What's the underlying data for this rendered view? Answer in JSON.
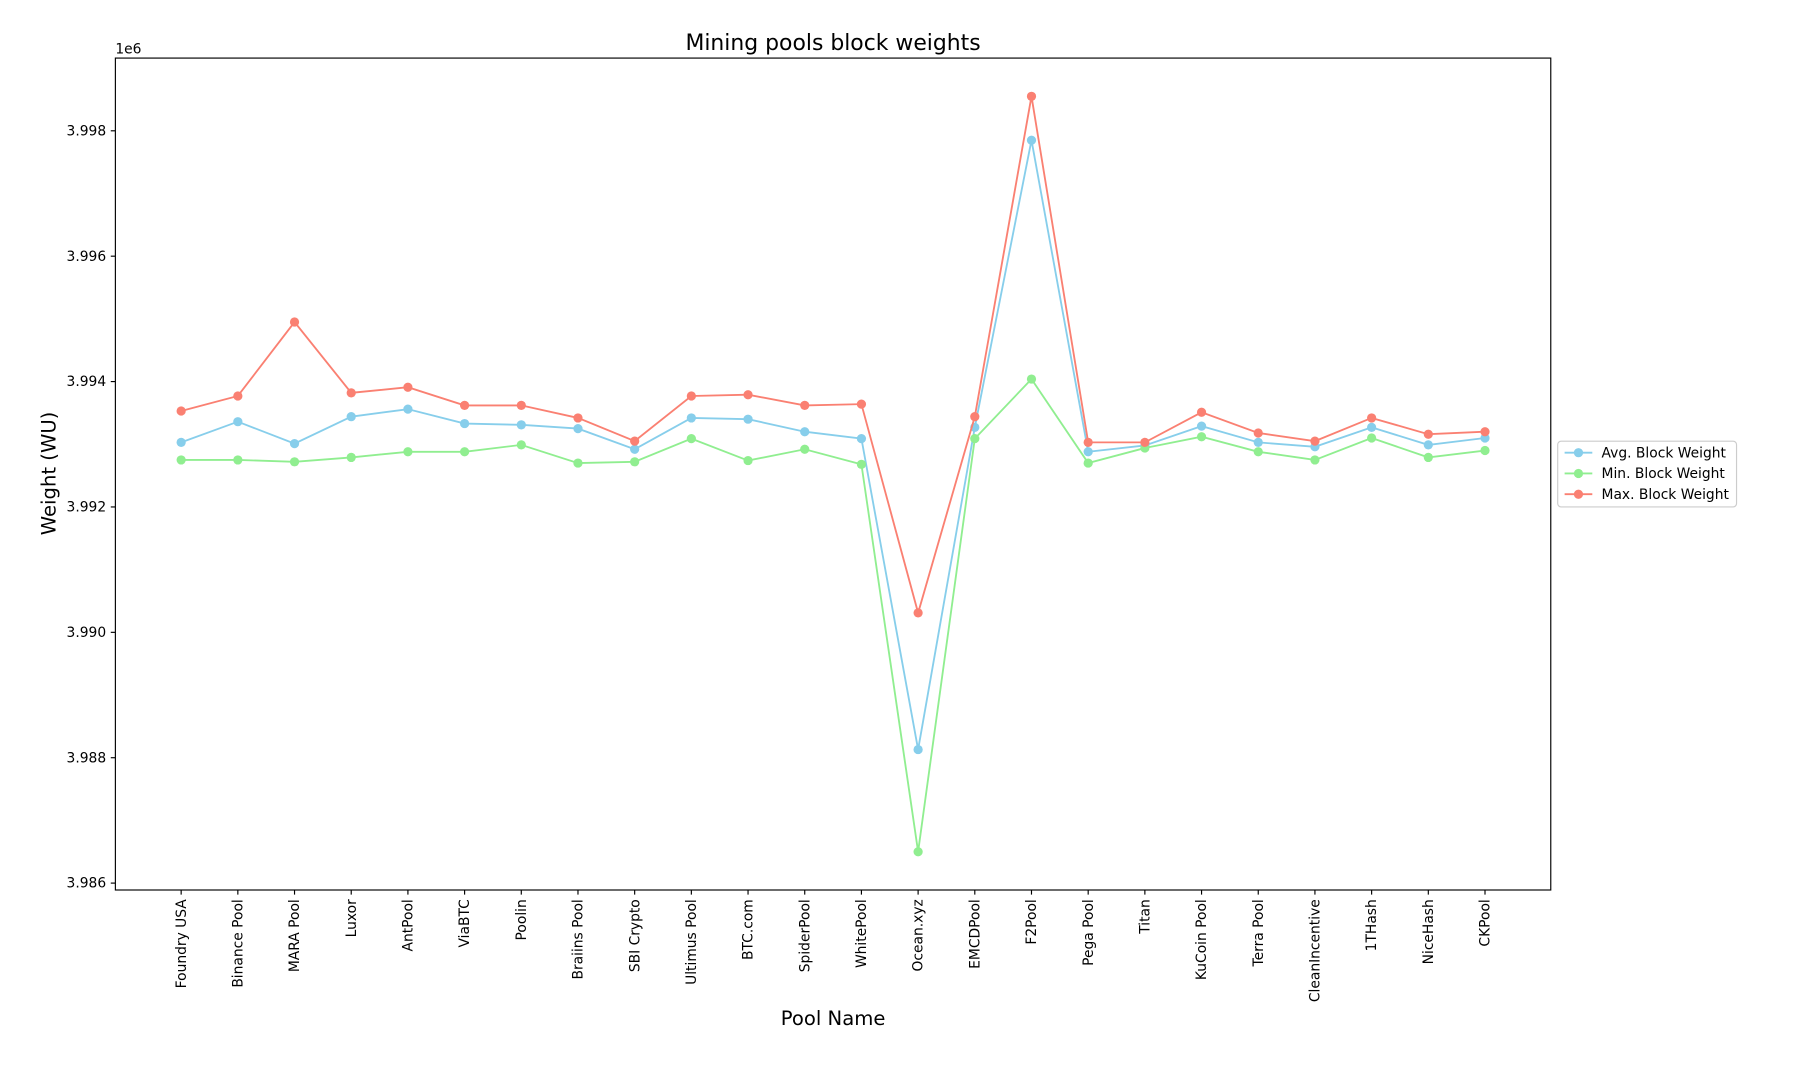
{
  "chart_data": {
    "type": "line",
    "title": "Mining pools block weights",
    "xlabel": "Pool Name",
    "ylabel": "Weight (WU)",
    "y_offset_label": "1e6",
    "ylim": [
      3.98589,
      3.99916
    ],
    "yticks": [
      3.986,
      3.988,
      3.99,
      3.992,
      3.994,
      3.996,
      3.998
    ],
    "ytick_labels": [
      "3.986",
      "3.988",
      "3.990",
      "3.992",
      "3.994",
      "3.996",
      "3.998"
    ],
    "grid": false,
    "legend_position": "outside-right",
    "categories": [
      "Foundry USA",
      "Binance Pool",
      "MARA Pool",
      "Luxor",
      "AntPool",
      "ViaBTC",
      "Poolin",
      "Braiins Pool",
      "SBI Crypto",
      "Ultimus Pool",
      "BTC.com",
      "SpiderPool",
      "WhitePool",
      "Ocean.xyz",
      "EMCDPool",
      "F2Pool",
      "Pega Pool",
      "Titan",
      "KuCoin Pool",
      "Terra Pool",
      "CleanIncentive",
      "1THash",
      "NiceHash",
      "CKPool"
    ],
    "series": [
      {
        "name": "Avg. Block Weight",
        "color": "#87ceeb",
        "values": [
          3.99303,
          3.99336,
          3.99301,
          3.99344,
          3.99356,
          3.99333,
          3.99331,
          3.99325,
          3.99292,
          3.99342,
          3.9934,
          3.9932,
          3.99309,
          3.98813,
          3.99327,
          3.99785,
          3.99288,
          3.99298,
          3.99329,
          3.99303,
          3.99296,
          3.99327,
          3.99299,
          3.9931
        ]
      },
      {
        "name": "Min. Block Weight",
        "color": "#90ee90",
        "values": [
          3.99275,
          3.99275,
          3.99272,
          3.99279,
          3.99288,
          3.99288,
          3.99299,
          3.9927,
          3.99272,
          3.99309,
          3.99274,
          3.99292,
          3.99268,
          3.9865,
          3.99309,
          3.99404,
          3.9927,
          3.99294,
          3.99312,
          3.99288,
          3.99275,
          3.9931,
          3.99279,
          3.9929
        ]
      },
      {
        "name": "Max. Block Weight",
        "color": "#fa8072",
        "values": [
          3.99353,
          3.99377,
          3.99495,
          3.99382,
          3.99391,
          3.99362,
          3.99362,
          3.99342,
          3.99305,
          3.99377,
          3.99379,
          3.99362,
          3.99364,
          3.99031,
          3.99344,
          3.99855,
          3.99303,
          3.99303,
          3.99351,
          3.99318,
          3.99305,
          3.99342,
          3.99316,
          3.9932
        ]
      }
    ]
  }
}
